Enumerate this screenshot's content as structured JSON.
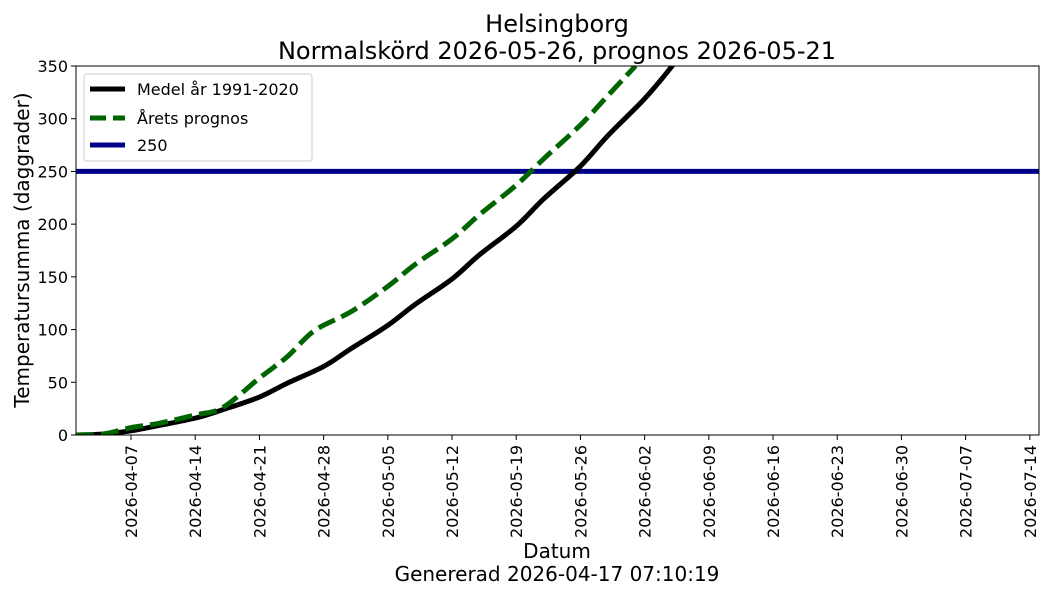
{
  "chart_data": {
    "type": "line",
    "title": "Helsingborg",
    "subtitle": "Normalskörd 2026-05-26, prognos 2026-05-21",
    "xlabel": "Datum",
    "footer": "Genererad 2026-04-17 07:10:19",
    "ylabel": "Temperatursumma (daggrader)",
    "xlim": [
      "2026-04-01",
      "2026-07-15"
    ],
    "ylim": [
      0,
      350
    ],
    "x_ticks": [
      "2026-04-07",
      "2026-04-14",
      "2026-04-21",
      "2026-04-28",
      "2026-05-05",
      "2026-05-12",
      "2026-05-19",
      "2026-05-26",
      "2026-06-02",
      "2026-06-09",
      "2026-06-16",
      "2026-06-23",
      "2026-06-30",
      "2026-07-07",
      "2026-07-14"
    ],
    "y_ticks": [
      0,
      50,
      100,
      150,
      200,
      250,
      300,
      350
    ],
    "grid": false,
    "legend_position": "top-left",
    "series": [
      {
        "name": "Medel år 1991-2020",
        "color": "#000000",
        "style": "solid",
        "x": [
          "2026-04-01",
          "2026-04-04",
          "2026-04-07",
          "2026-04-10",
          "2026-04-14",
          "2026-04-17",
          "2026-04-21",
          "2026-04-24",
          "2026-04-28",
          "2026-05-01",
          "2026-05-05",
          "2026-05-08",
          "2026-05-12",
          "2026-05-15",
          "2026-05-19",
          "2026-05-22",
          "2026-05-26",
          "2026-05-29",
          "2026-06-02",
          "2026-06-05",
          "2026-06-09"
        ],
        "values": [
          0,
          1,
          4,
          9,
          16,
          24,
          36,
          49,
          65,
          82,
          104,
          124,
          148,
          171,
          198,
          224,
          255,
          284,
          319,
          350,
          396
        ]
      },
      {
        "name": "Årets prognos",
        "color": "#006400",
        "style": "dashed",
        "x": [
          "2026-04-01",
          "2026-04-04",
          "2026-04-07",
          "2026-04-10",
          "2026-04-14",
          "2026-04-17",
          "2026-04-21",
          "2026-04-24",
          "2026-04-27",
          "2026-05-01",
          "2026-05-05",
          "2026-05-08",
          "2026-05-12",
          "2026-05-15",
          "2026-05-19",
          "2026-05-22",
          "2026-05-26",
          "2026-05-29",
          "2026-06-01"
        ],
        "values": [
          0,
          1,
          7,
          11,
          19,
          26,
          54,
          74,
          99,
          117,
          141,
          162,
          186,
          209,
          237,
          262,
          294,
          322,
          350
        ]
      },
      {
        "name": "250",
        "color": "#00008B",
        "style": "solid",
        "x": [
          "2026-04-01",
          "2026-07-15"
        ],
        "values": [
          250,
          250
        ]
      }
    ]
  }
}
